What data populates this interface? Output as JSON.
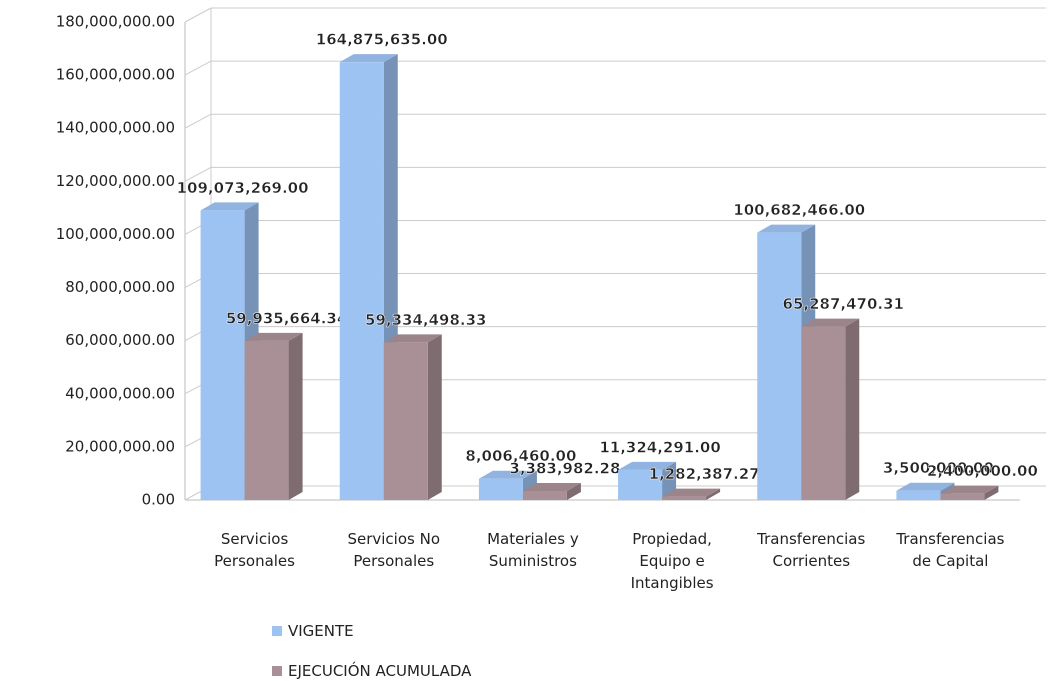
{
  "chart_data": {
    "type": "bar",
    "categories": [
      "Servicios Personales",
      "Servicios No Personales",
      "Materiales y Suministros",
      "Propiedad, Equipo e Intangibles",
      "Transferencias Corrientes",
      "Transferencias de Capital"
    ],
    "series": [
      {
        "name": "VIGENTE",
        "color": "#9dc3f2",
        "values": [
          109073269,
          164875635,
          8006460,
          11324291,
          100682466,
          3500000
        ],
        "value_labels": [
          "109,073,269.00",
          "164,875,635.00",
          "8,006,460.00",
          "11,324,291.00",
          "100,682,466.00",
          "3,500,000.00"
        ]
      },
      {
        "name": "EJECUCIÓN ACUMULADA",
        "color": "#a89096",
        "values": [
          59935664.34,
          59334498.33,
          3383982.28,
          1282387.27,
          65287470.31,
          2400000
        ],
        "value_labels": [
          "59,935,664.34",
          "59,334,498.33",
          "3,383,982.28",
          "1,282,387.27",
          "65,287,470.31",
          "2,400,000.00"
        ]
      }
    ],
    "ylim": [
      0,
      180000000
    ],
    "yticks": [
      {
        "value": 0,
        "label": "0.00"
      },
      {
        "value": 20000000,
        "label": "20,000,000.00"
      },
      {
        "value": 40000000,
        "label": "40,000,000.00"
      },
      {
        "value": 60000000,
        "label": "60,000,000.00"
      },
      {
        "value": 80000000,
        "label": "80,000,000.00"
      },
      {
        "value": 100000000,
        "label": "100,000,000.00"
      },
      {
        "value": 120000000,
        "label": "120,000,000.00"
      },
      {
        "value": 140000000,
        "label": "140,000,000.00"
      },
      {
        "value": 160000000,
        "label": "160,000,000.00"
      },
      {
        "value": 180000000,
        "label": "180,000,000.00"
      }
    ],
    "grid": true,
    "legend": "bottom-left"
  }
}
